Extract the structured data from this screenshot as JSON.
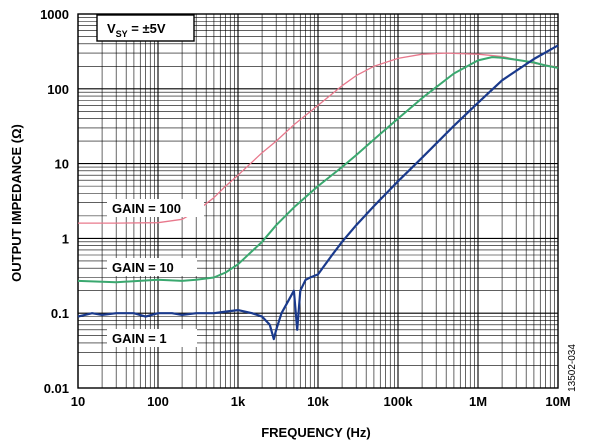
{
  "chart_data": {
    "type": "line",
    "xlabel": "FREQUENCY (Hz)",
    "ylabel": "OUTPUT IMPEDANCE (Ω)",
    "x_scale": "log",
    "y_scale": "log",
    "xlim": [
      10,
      10000000
    ],
    "ylim": [
      0.01,
      1000
    ],
    "grid": true,
    "x_ticks": [
      {
        "value": 10,
        "label": "10"
      },
      {
        "value": 100,
        "label": "100"
      },
      {
        "value": 1000,
        "label": "1k"
      },
      {
        "value": 10000,
        "label": "10k"
      },
      {
        "value": 100000,
        "label": "100k"
      },
      {
        "value": 1000000,
        "label": "1M"
      },
      {
        "value": 10000000,
        "label": "10M"
      }
    ],
    "y_ticks": [
      {
        "value": 0.01,
        "label": "0.01"
      },
      {
        "value": 0.1,
        "label": "0.1"
      },
      {
        "value": 1,
        "label": "1"
      },
      {
        "value": 10,
        "label": "10"
      },
      {
        "value": 100,
        "label": "100"
      },
      {
        "value": 1000,
        "label": "1000"
      }
    ],
    "condition": {
      "main": "V",
      "sub": "SY",
      "rest": " = ±5V"
    },
    "figure_id": "13502-034",
    "series": [
      {
        "name": "GAIN = 100",
        "color": "#e8788c",
        "x": [
          10,
          30,
          100,
          200,
          300,
          500,
          700,
          1000,
          2000,
          3000,
          5000,
          10000,
          20000,
          30000,
          50000,
          100000,
          200000,
          400000,
          1000000,
          2000000,
          5000000,
          10000000
        ],
        "y": [
          1.6,
          1.6,
          1.62,
          1.8,
          2.3,
          3.5,
          5,
          7,
          14,
          20,
          33,
          60,
          110,
          150,
          200,
          255,
          290,
          300,
          290,
          270,
          220,
          195
        ]
      },
      {
        "name": "GAIN = 10",
        "color": "#3aa86f",
        "x": [
          10,
          30,
          100,
          200,
          300,
          500,
          700,
          1000,
          2000,
          3000,
          5000,
          10000,
          20000,
          30000,
          50000,
          100000,
          200000,
          500000,
          1000000,
          1500000,
          2000000,
          3000000,
          5000000,
          7000000,
          10000000
        ],
        "y": [
          0.27,
          0.26,
          0.28,
          0.27,
          0.28,
          0.3,
          0.35,
          0.45,
          0.9,
          1.5,
          2.6,
          5,
          9,
          13,
          21,
          40,
          75,
          160,
          240,
          265,
          260,
          245,
          225,
          205,
          190
        ]
      },
      {
        "name": "GAIN = 1",
        "color": "#1a3a8c",
        "x": [
          10,
          15,
          20,
          30,
          50,
          70,
          100,
          150,
          200,
          300,
          500,
          700,
          1000,
          1500,
          2000,
          2500,
          2800,
          3000,
          3500,
          4000,
          5000,
          5500,
          6000,
          7000,
          8000,
          10000,
          15000,
          20000,
          30000,
          50000,
          100000,
          200000,
          500000,
          1000000,
          2000000,
          5000000,
          10000000
        ],
        "y": [
          0.09,
          0.1,
          0.095,
          0.1,
          0.1,
          0.09,
          0.1,
          0.1,
          0.095,
          0.1,
          0.1,
          0.105,
          0.11,
          0.1,
          0.09,
          0.07,
          0.045,
          0.06,
          0.1,
          0.13,
          0.2,
          0.06,
          0.2,
          0.28,
          0.3,
          0.33,
          0.6,
          0.9,
          1.5,
          2.7,
          5.8,
          12,
          32,
          65,
          130,
          250,
          380
        ]
      }
    ]
  }
}
